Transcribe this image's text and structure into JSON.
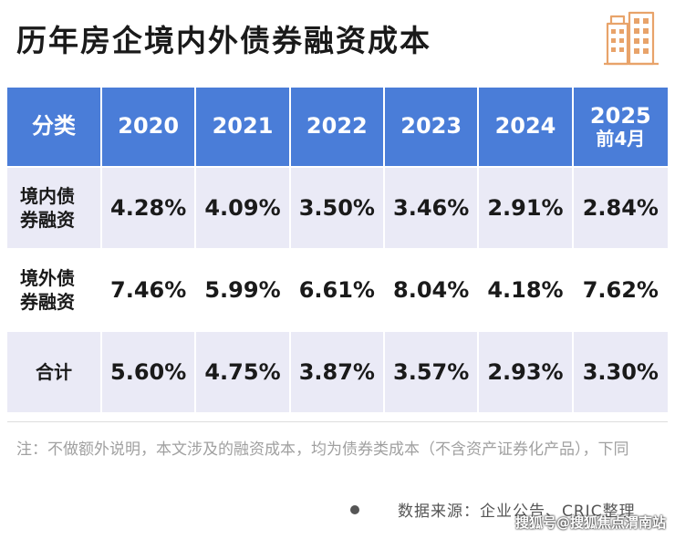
{
  "title": "历年房企境内外债券融资成本",
  "table": {
    "headers": [
      "分类",
      "2020",
      "2021",
      "2022",
      "2023",
      "2024",
      "2025",
      "前4月"
    ],
    "rows": [
      {
        "category_line1": "境内债",
        "category_line2": "券融资",
        "values": [
          "4.28%",
          "4.09%",
          "3.50%",
          "3.46%",
          "2.91%",
          "2.84%"
        ]
      },
      {
        "category_line1": "境外债",
        "category_line2": "券融资",
        "values": [
          "7.46%",
          "5.99%",
          "6.61%",
          "8.04%",
          "4.18%",
          "7.62%"
        ]
      },
      {
        "category_line1": "合计",
        "category_line2": "",
        "values": [
          "5.60%",
          "4.75%",
          "3.87%",
          "3.57%",
          "2.93%",
          "3.30%"
        ]
      }
    ]
  },
  "note": "注：不做额外说明，本文涉及的融资成本，均为债券类成本（不含资产证券化产品），下同",
  "source": "数据来源：企业公告、CRIC整理",
  "watermark": "搜狐号@搜狐焦点渭南站",
  "colors": {
    "header_bg": "#4a7dd8",
    "row_alt_bg": "#eaeaf6",
    "icon_orange": "#e8a36a"
  },
  "icons": [
    "building-icon"
  ]
}
